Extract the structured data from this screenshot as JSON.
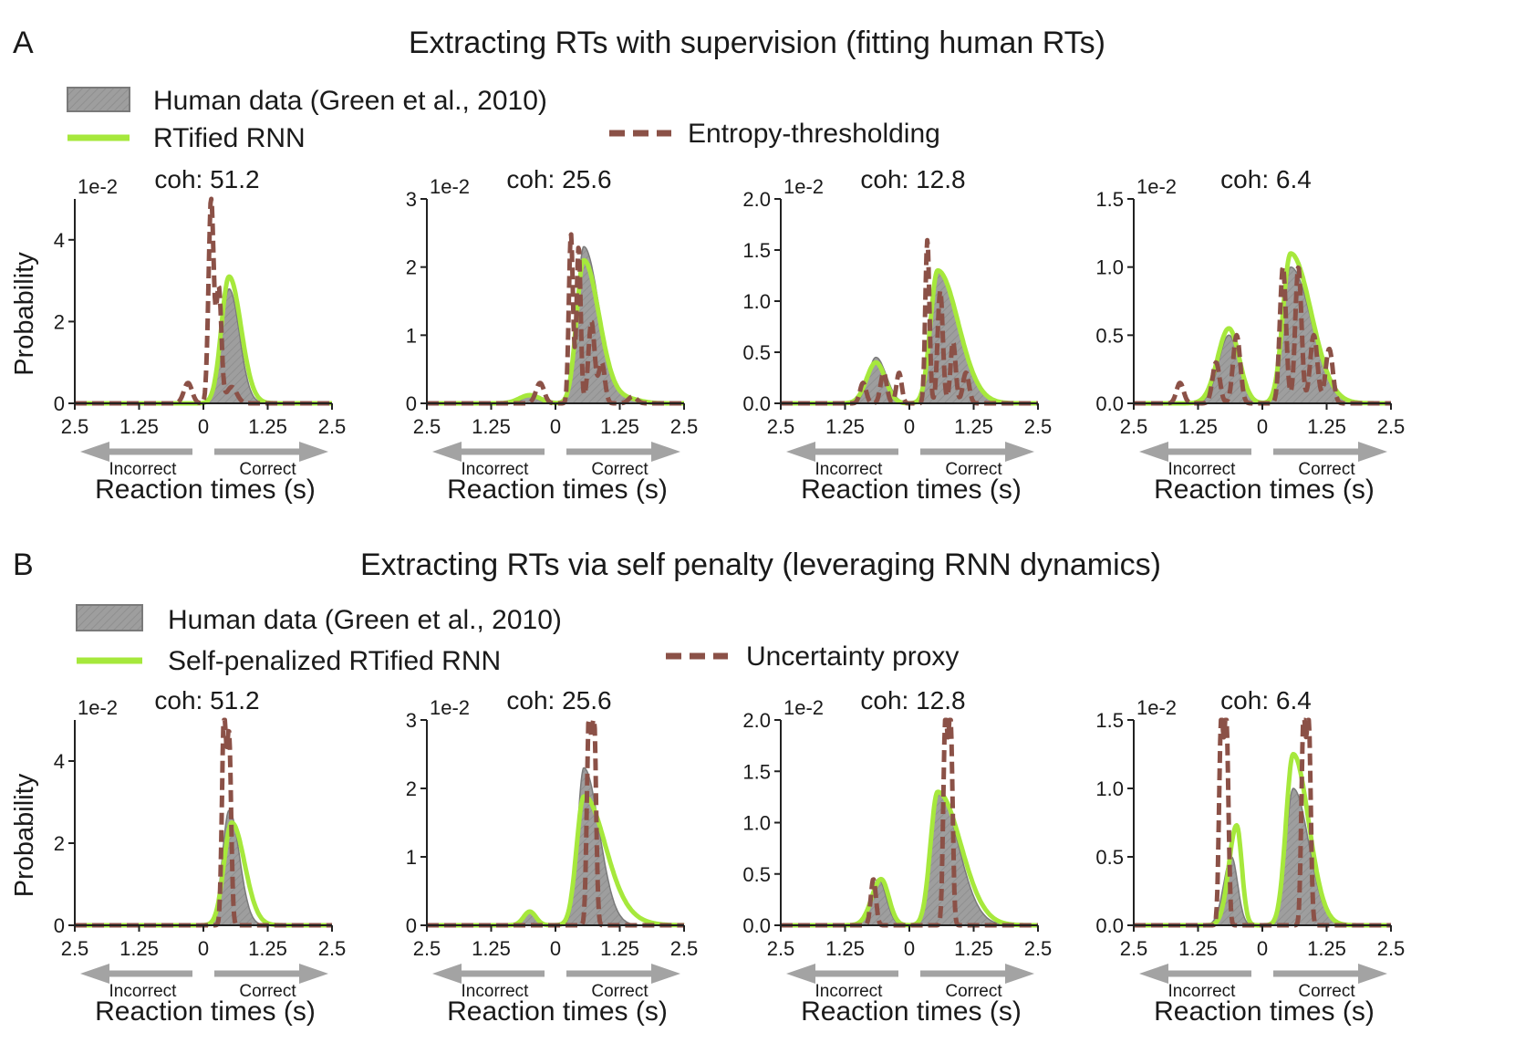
{
  "panel_a": {
    "letter": "A",
    "title": "Extracting RTs with supervision (fitting human RTs)",
    "legend": {
      "human": "Human data (Green et al., 2010)",
      "rnn": "RTified RNN",
      "model": "Entropy-thresholding"
    }
  },
  "panel_b": {
    "letter": "B",
    "title": "Extracting RTs via self penalty (leveraging RNN dynamics)",
    "legend": {
      "human": "Human data (Green et al., 2010)",
      "rnn": "Self-penalized RTified RNN",
      "model": "Uncertainty proxy"
    }
  },
  "common": {
    "xlabel": "Reaction times (s)",
    "ylabel": "Probability",
    "incorrect": "Incorrect",
    "correct": "Correct",
    "scale": "1e-2",
    "xticks": [
      "2.5",
      "1.25",
      "0",
      "1.25",
      "2.5"
    ]
  },
  "colors": {
    "human_fill": "#9e9e9e",
    "human_edge": "#7a7a7a",
    "rnn": "#a6e83c",
    "model": "#8b5147",
    "arrow": "#a3a3a3",
    "axis": "#222222"
  },
  "chart_data": [
    {
      "type": "line",
      "row": "A",
      "title": "coh: 51.2",
      "ylim": [
        0,
        5
      ],
      "yticks": [
        0,
        2,
        4
      ],
      "ytick_labels": [
        "0",
        "2",
        "4"
      ],
      "x": "signed RT (s), negative = incorrect, positive = correct, range [-2.5, 2.5]",
      "series": [
        {
          "name": "Human data",
          "kind": "hist",
          "peaks": [
            [
              0.5,
              2.8,
              0.15,
              0.2
            ]
          ]
        },
        {
          "name": "RTified RNN",
          "kind": "curve",
          "peaks": [
            [
              0.5,
              3.1,
              0.15,
              0.23
            ]
          ]
        },
        {
          "name": "Entropy-thresholding",
          "kind": "spiky",
          "peaks": [
            [
              0.15,
              5.0,
              0.05,
              0.05
            ],
            [
              0.3,
              2.8,
              0.05,
              0.05
            ],
            [
              -0.3,
              0.5,
              0.08,
              0.08
            ],
            [
              0.55,
              0.4,
              0.1,
              0.1
            ]
          ]
        }
      ]
    },
    {
      "type": "line",
      "row": "A",
      "title": "coh: 25.6",
      "ylim": [
        0,
        3
      ],
      "yticks": [
        0,
        1,
        2,
        3
      ],
      "ytick_labels": [
        "0",
        "1",
        "2",
        "3"
      ],
      "series": [
        {
          "name": "Human data",
          "kind": "hist",
          "peaks": [
            [
              0.55,
              2.3,
              0.13,
              0.3
            ],
            [
              -0.5,
              0.1,
              0.15,
              0.15
            ],
            [
              1.5,
              0.05,
              0.2,
              0.2
            ]
          ]
        },
        {
          "name": "RTified RNN",
          "kind": "curve",
          "peaks": [
            [
              0.55,
              2.1,
              0.14,
              0.3
            ],
            [
              -0.5,
              0.12,
              0.2,
              0.2
            ],
            [
              1.4,
              0.06,
              0.25,
              0.25
            ]
          ]
        },
        {
          "name": "Entropy-thresholding",
          "kind": "spiky",
          "peaks": [
            [
              0.3,
              2.5,
              0.04,
              0.04
            ],
            [
              0.45,
              2.3,
              0.04,
              0.04
            ],
            [
              0.7,
              1.2,
              0.06,
              0.06
            ],
            [
              0.9,
              0.6,
              0.06,
              0.06
            ],
            [
              -0.3,
              0.3,
              0.08,
              0.08
            ],
            [
              1.5,
              0.1,
              0.08,
              0.08
            ]
          ]
        }
      ]
    },
    {
      "type": "line",
      "row": "A",
      "title": "coh: 12.8",
      "ylim": [
        0,
        2.0
      ],
      "yticks": [
        0,
        0.5,
        1.0,
        1.5,
        2.0
      ],
      "ytick_labels": [
        "0.0",
        "0.5",
        "1.0",
        "1.5",
        "2.0"
      ],
      "series": [
        {
          "name": "Human data",
          "kind": "hist",
          "peaks": [
            [
              0.55,
              1.3,
              0.15,
              0.4
            ],
            [
              -0.65,
              0.45,
              0.15,
              0.2
            ]
          ]
        },
        {
          "name": "RTified RNN",
          "kind": "curve",
          "peaks": [
            [
              0.55,
              1.3,
              0.14,
              0.4
            ],
            [
              -0.65,
              0.4,
              0.18,
              0.18
            ]
          ]
        },
        {
          "name": "Entropy-thresholding",
          "kind": "spiky",
          "peaks": [
            [
              0.35,
              1.6,
              0.04,
              0.04
            ],
            [
              0.6,
              1.1,
              0.05,
              0.05
            ],
            [
              0.85,
              0.6,
              0.05,
              0.05
            ],
            [
              1.1,
              0.3,
              0.06,
              0.06
            ],
            [
              -0.5,
              0.3,
              0.06,
              0.06
            ],
            [
              -0.9,
              0.2,
              0.06,
              0.06
            ],
            [
              -0.2,
              0.3,
              0.05,
              0.05
            ]
          ]
        }
      ]
    },
    {
      "type": "line",
      "row": "A",
      "title": "coh: 6.4",
      "ylim": [
        0,
        1.5
      ],
      "yticks": [
        0,
        0.5,
        1.0,
        1.5
      ],
      "ytick_labels": [
        "0.0",
        "0.5",
        "1.0",
        "1.5"
      ],
      "series": [
        {
          "name": "Human data",
          "kind": "hist",
          "peaks": [
            [
              0.55,
              1.0,
              0.15,
              0.4
            ],
            [
              -0.65,
              0.5,
              0.2,
              0.2
            ]
          ]
        },
        {
          "name": "RTified RNN",
          "kind": "curve",
          "peaks": [
            [
              0.55,
              1.1,
              0.15,
              0.4
            ],
            [
              -0.65,
              0.55,
              0.22,
              0.2
            ]
          ]
        },
        {
          "name": "Entropy-thresholding",
          "kind": "spiky",
          "peaks": [
            [
              0.4,
              1.0,
              0.06,
              0.06
            ],
            [
              0.7,
              1.0,
              0.06,
              0.06
            ],
            [
              1.0,
              0.5,
              0.07,
              0.07
            ],
            [
              1.3,
              0.4,
              0.07,
              0.07
            ],
            [
              -0.5,
              0.5,
              0.07,
              0.07
            ],
            [
              -0.9,
              0.3,
              0.07,
              0.07
            ],
            [
              -1.6,
              0.15,
              0.07,
              0.07
            ]
          ]
        }
      ]
    },
    {
      "type": "line",
      "row": "B",
      "title": "coh: 51.2",
      "ylim": [
        0,
        5
      ],
      "yticks": [
        0,
        2,
        4
      ],
      "ytick_labels": [
        "0",
        "2",
        "4"
      ],
      "series": [
        {
          "name": "Human data",
          "kind": "hist",
          "peaks": [
            [
              0.5,
              2.8,
              0.13,
              0.2
            ]
          ]
        },
        {
          "name": "Self-penalized RTified RNN",
          "kind": "curve",
          "peaks": [
            [
              0.55,
              2.5,
              0.15,
              0.25
            ]
          ]
        },
        {
          "name": "Uncertainty proxy",
          "kind": "spiky",
          "peaks": [
            [
              0.4,
              5.0,
              0.04,
              0.04
            ],
            [
              0.5,
              4.5,
              0.04,
              0.04
            ]
          ]
        }
      ]
    },
    {
      "type": "line",
      "row": "B",
      "title": "coh: 25.6",
      "ylim": [
        0,
        3
      ],
      "yticks": [
        0,
        1,
        2,
        3
      ],
      "ytick_labels": [
        "0",
        "1",
        "2",
        "3"
      ],
      "series": [
        {
          "name": "Human data",
          "kind": "hist",
          "peaks": [
            [
              0.55,
              2.3,
              0.12,
              0.3
            ],
            [
              -0.5,
              0.2,
              0.1,
              0.1
            ]
          ]
        },
        {
          "name": "Self-penalized RTified RNN",
          "kind": "curve",
          "peaks": [
            [
              0.55,
              1.85,
              0.14,
              0.4
            ],
            [
              1.2,
              0.12,
              0.4,
              0.4
            ],
            [
              -0.5,
              0.2,
              0.12,
              0.12
            ]
          ]
        },
        {
          "name": "Uncertainty proxy",
          "kind": "spiky",
          "peaks": [
            [
              0.65,
              3.0,
              0.04,
              0.04
            ],
            [
              0.75,
              3.0,
              0.04,
              0.04
            ]
          ]
        }
      ]
    },
    {
      "type": "line",
      "row": "B",
      "title": "coh: 12.8",
      "ylim": [
        0,
        2.0
      ],
      "yticks": [
        0,
        0.5,
        1.0,
        1.5,
        2.0
      ],
      "ytick_labels": [
        "0.0",
        "0.5",
        "1.0",
        "1.5",
        "2.0"
      ],
      "series": [
        {
          "name": "Human data",
          "kind": "hist",
          "peaks": [
            [
              0.55,
              1.3,
              0.14,
              0.4
            ],
            [
              -0.6,
              0.45,
              0.15,
              0.15
            ]
          ]
        },
        {
          "name": "Self-penalized RTified RNN",
          "kind": "curve",
          "peaks": [
            [
              0.55,
              1.3,
              0.14,
              0.45
            ],
            [
              -0.55,
              0.45,
              0.18,
              0.15
            ]
          ]
        },
        {
          "name": "Uncertainty proxy",
          "kind": "spiky",
          "peaks": [
            [
              0.7,
              2.0,
              0.04,
              0.04
            ],
            [
              0.8,
              2.0,
              0.04,
              0.04
            ],
            [
              -0.7,
              0.45,
              0.05,
              0.05
            ]
          ]
        }
      ]
    },
    {
      "type": "line",
      "row": "B",
      "title": "coh: 6.4",
      "ylim": [
        0,
        1.5
      ],
      "yticks": [
        0,
        0.5,
        1.0,
        1.5
      ],
      "ytick_labels": [
        "0.0",
        "0.5",
        "1.0",
        "1.5"
      ],
      "series": [
        {
          "name": "Human data",
          "kind": "hist",
          "peaks": [
            [
              0.6,
              1.0,
              0.14,
              0.3
            ],
            [
              -0.6,
              0.5,
              0.15,
              0.12
            ]
          ]
        },
        {
          "name": "Self-penalized RTified RNN",
          "kind": "curve",
          "peaks": [
            [
              0.6,
              1.25,
              0.14,
              0.3
            ],
            [
              -0.5,
              0.73,
              0.15,
              0.1
            ]
          ]
        },
        {
          "name": "Uncertainty proxy",
          "kind": "spiky",
          "peaks": [
            [
              0.8,
              1.5,
              0.04,
              0.04
            ],
            [
              0.9,
              1.5,
              0.04,
              0.04
            ],
            [
              -0.7,
              1.5,
              0.04,
              0.04
            ],
            [
              -0.8,
              1.5,
              0.04,
              0.04
            ]
          ]
        }
      ]
    }
  ]
}
